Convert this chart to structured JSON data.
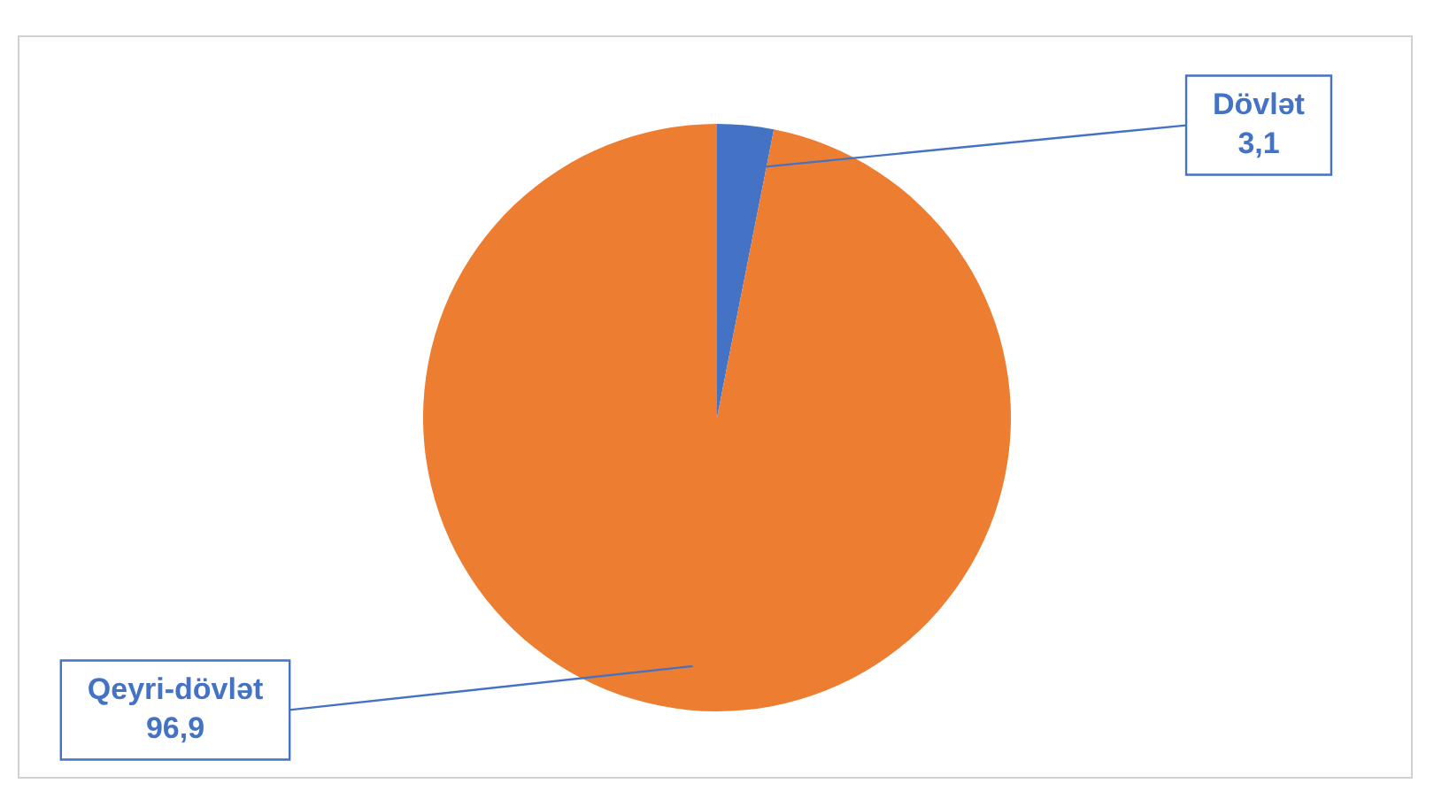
{
  "chart_data": {
    "type": "pie",
    "categories": [
      "Dövlət",
      "Qeyri-dövlət"
    ],
    "values": [
      3.1,
      96.9
    ],
    "colors": [
      "#4472c4",
      "#ed7d31"
    ],
    "value_labels": [
      "3,1",
      "96,9"
    ],
    "legend": false
  }
}
